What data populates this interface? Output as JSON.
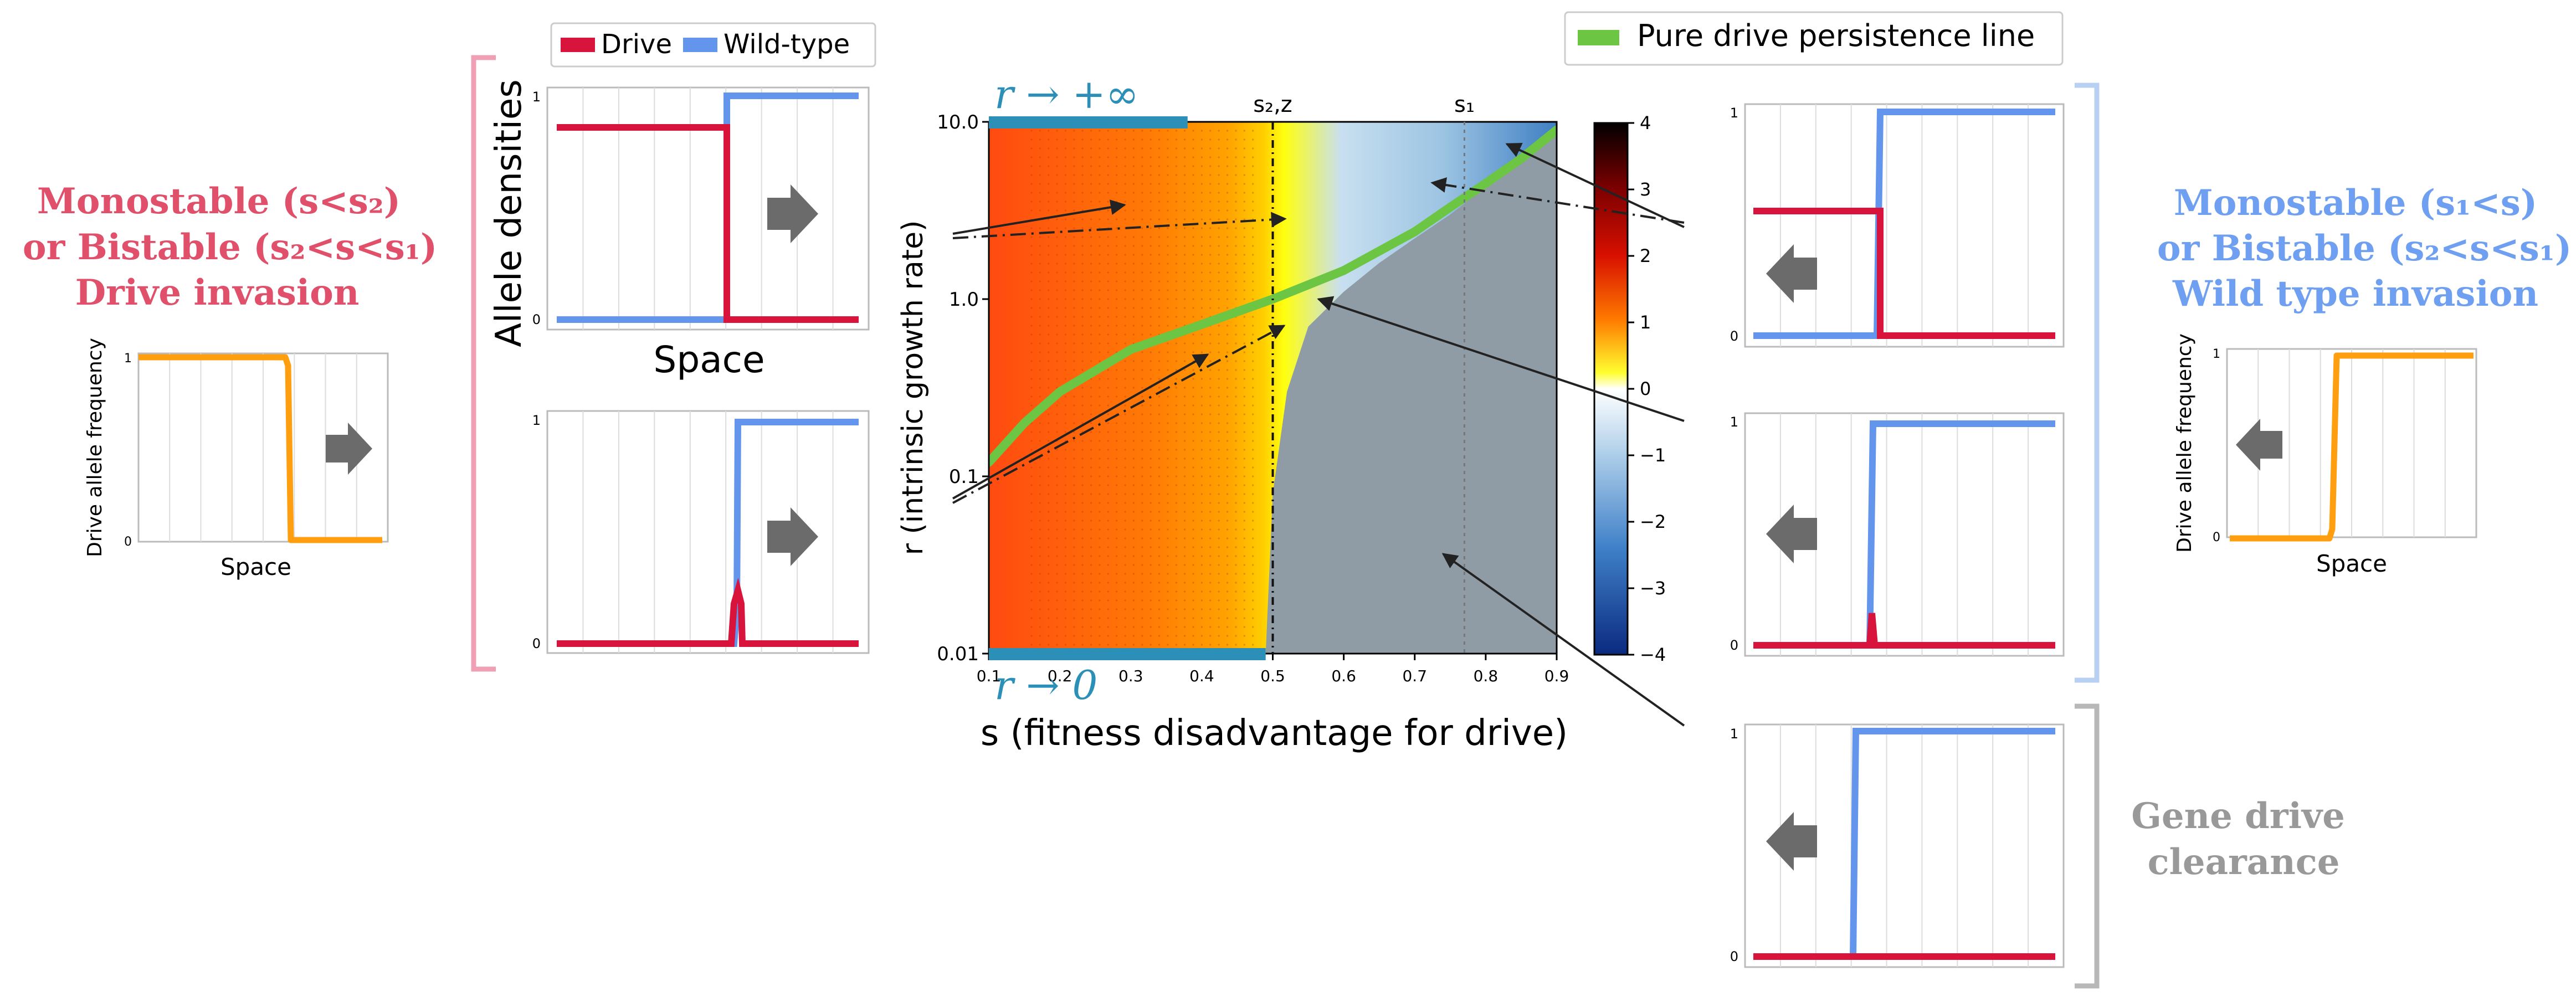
{
  "colors": {
    "drive": "#d8143c",
    "wildtype": "#6495ed",
    "frequency": "#ff9f10",
    "persistence_line": "#6cc644",
    "limit_bar": "#2b8fb8",
    "left_text": "#e0506a",
    "right_text": "#6f9ff0",
    "gray_text": "#999999",
    "clearance_region": "#8f9ca6",
    "arrow_icon": "#6b6b6b"
  },
  "legend_top": {
    "drive": "Drive",
    "wildtype": "Wild-type"
  },
  "legend_right": {
    "persistence": "Pure drive persistence line"
  },
  "left_block": {
    "title_lines": [
      "Monostable (s<s₂)",
      "or Bistable (s₂<s<s₁)",
      "Drive invasion"
    ],
    "freq_ylabel": "Drive allele frequency",
    "freq_xlabel": "Space",
    "ytick_top": "1",
    "ytick_bottom": "0"
  },
  "right_block": {
    "title_lines": [
      "Monostable (s₁<s)",
      "or Bistable (s₂<s<s₁)",
      "Wild type invasion"
    ],
    "freq_ylabel": "Drive allele frequency",
    "freq_xlabel": "Space",
    "ytick_top": "1",
    "ytick_bottom": "0"
  },
  "clearance": {
    "title_lines": [
      "Gene drive",
      "clearance"
    ]
  },
  "density_panels": {
    "ylabel": "Allele densities",
    "xlabel": "Space",
    "ytick_top": "1",
    "ytick_bottom": "0"
  },
  "chart_data": {
    "type": "heatmap",
    "x": [
      0.1,
      0.2,
      0.3,
      0.4,
      0.5,
      0.6,
      0.7,
      0.8,
      0.9
    ],
    "xticklabels": [
      "0.1",
      "0.2",
      "0.3",
      "0.4",
      "0.5",
      "0.6",
      "0.7",
      "0.8",
      "0.9"
    ],
    "y_ticks": [
      0.01,
      0.1,
      1.0,
      10.0
    ],
    "yticklabels": [
      "0.01",
      "0.1",
      "1.0",
      "10.0"
    ],
    "xlabel": "s (fitness disadvantage for drive)",
    "ylabel": "r (intrinsic growth rate)",
    "xlim": [
      0.1,
      0.9
    ],
    "ylim": [
      0.01,
      10.0
    ],
    "yscale": "log",
    "colorbar": {
      "ticks": [
        4,
        3,
        2,
        1,
        0,
        -1,
        -2,
        -3,
        -4
      ],
      "range": [
        -4,
        4
      ]
    },
    "vlines": [
      {
        "x": 0.5,
        "label": "s₂,z"
      },
      {
        "x": 0.77,
        "label": "s₁"
      }
    ],
    "limits": [
      {
        "label": "r → +∞",
        "x": [
          0.1,
          0.38
        ]
      },
      {
        "label": "r → 0",
        "x": [
          0.1,
          0.49
        ]
      }
    ],
    "clearance_boundary": {
      "s": [
        0.49,
        0.5,
        0.52,
        0.55,
        0.6,
        0.65,
        0.7,
        0.75,
        0.8,
        0.85,
        0.9
      ],
      "r": [
        0.01,
        0.08,
        0.3,
        0.7,
        1.1,
        1.6,
        2.2,
        3.0,
        4.3,
        6.0,
        8.5
      ]
    },
    "persistence_line": {
      "s": [
        0.1,
        0.15,
        0.2,
        0.3,
        0.4,
        0.5,
        0.6,
        0.7,
        0.75,
        0.8,
        0.85,
        0.9
      ],
      "r": [
        0.12,
        0.2,
        0.3,
        0.52,
        0.72,
        1.0,
        1.45,
        2.4,
        3.3,
        4.5,
        6.2,
        9.0
      ]
    },
    "zero_contour": {
      "s": [
        0.5,
        0.52,
        0.52,
        0.54,
        0.54,
        0.5
      ],
      "r": [
        0.03,
        0.03,
        0.5,
        0.5,
        10.0,
        10.0
      ]
    }
  }
}
